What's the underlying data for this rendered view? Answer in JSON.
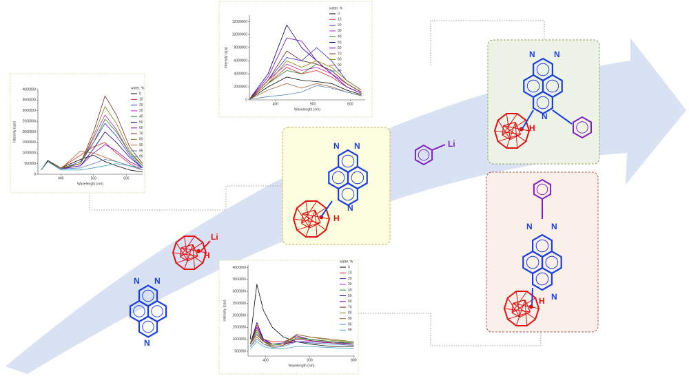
{
  "spectra": [
    {
      "type": "line",
      "ylabel": "Intensity (cps)",
      "xlabel": "Wavelength (nm)",
      "legend_title": "water, %",
      "x": [
        340,
        360,
        400,
        460,
        500,
        535,
        570,
        610,
        650
      ],
      "xlim": [
        330,
        650
      ],
      "xticks": [
        400,
        500,
        600
      ],
      "ylim": [
        0,
        4000000
      ],
      "yticks": [
        0,
        500000,
        1000000,
        1500000,
        2000000,
        2500000,
        3000000,
        3500000,
        4000000
      ],
      "series": [
        {
          "name": "0",
          "color": "#000000",
          "values": [
            200000,
            650000,
            300000,
            700000,
            900000,
            600000,
            400000,
            200000,
            100000
          ]
        },
        {
          "name": "10",
          "color": "#e02020",
          "values": [
            200000,
            600000,
            300000,
            900000,
            1300000,
            1500000,
            1000000,
            500000,
            200000
          ]
        },
        {
          "name": "20",
          "color": "#3030d0",
          "values": [
            200000,
            600000,
            250000,
            600000,
            1500000,
            2400000,
            1800000,
            900000,
            300000
          ]
        },
        {
          "name": "30",
          "color": "#c020c0",
          "values": [
            200000,
            600000,
            250000,
            500000,
            1700000,
            2800000,
            2100000,
            1000000,
            400000
          ]
        },
        {
          "name": "40",
          "color": "#208020",
          "values": [
            200000,
            600000,
            250000,
            500000,
            1500000,
            2600000,
            2000000,
            1000000,
            400000
          ]
        },
        {
          "name": "50",
          "color": "#000080",
          "values": [
            200000,
            600000,
            250000,
            400000,
            1200000,
            2000000,
            1500000,
            800000,
            300000
          ]
        },
        {
          "name": "60",
          "color": "#8000c0",
          "values": [
            200000,
            600000,
            250000,
            400000,
            1000000,
            1400000,
            1100000,
            600000,
            300000
          ]
        },
        {
          "name": "70",
          "color": "#802020",
          "values": [
            200000,
            600000,
            300000,
            500000,
            2000000,
            3700000,
            2800000,
            1300000,
            500000
          ]
        },
        {
          "name": "80",
          "color": "#808000",
          "values": [
            200000,
            600000,
            300000,
            500000,
            1800000,
            3200000,
            2400000,
            1100000,
            400000
          ]
        },
        {
          "name": "90",
          "color": "#a06030",
          "values": [
            200000,
            600000,
            250000,
            1100000,
            1000000,
            800000,
            600000,
            400000,
            200000
          ]
        },
        {
          "name": "95",
          "color": "#5080c0",
          "values": [
            200000,
            600000,
            250000,
            300000,
            500000,
            700000,
            600000,
            400000,
            200000
          ]
        },
        {
          "name": "99",
          "color": "#40a0c0",
          "values": [
            200000,
            600000,
            200000,
            200000,
            300000,
            400000,
            500000,
            400000,
            300000
          ]
        }
      ]
    },
    {
      "type": "line",
      "ylabel": "Intensity (cps)",
      "xlabel": "Wavelength (nm)",
      "legend_title": "water, %",
      "x": [
        330,
        380,
        430,
        470,
        510,
        550,
        590,
        630
      ],
      "xlim": [
        330,
        640
      ],
      "xticks": [
        400,
        500,
        600
      ],
      "ylim": [
        0,
        13000000
      ],
      "yticks": [
        0,
        2000000,
        4000000,
        6000000,
        8000000,
        10000000,
        12000000
      ],
      "series": [
        {
          "name": "0",
          "color": "#000000",
          "values": [
            100000,
            2000000,
            3500000,
            3000000,
            2800000,
            2500000,
            1500000,
            800000
          ]
        },
        {
          "name": "10",
          "color": "#e02020",
          "values": [
            100000,
            2500000,
            5000000,
            4000000,
            4500000,
            3500000,
            2000000,
            1000000
          ]
        },
        {
          "name": "20",
          "color": "#3030d0",
          "values": [
            100000,
            3000000,
            6500000,
            6000000,
            8000000,
            6000000,
            3000000,
            1500000
          ]
        },
        {
          "name": "30",
          "color": "#c020c0",
          "values": [
            100000,
            3000000,
            5500000,
            4500000,
            5000000,
            4000000,
            2500000,
            1200000
          ]
        },
        {
          "name": "40",
          "color": "#208020",
          "values": [
            100000,
            2500000,
            4500000,
            4000000,
            5500000,
            4500000,
            2500000,
            1200000
          ]
        },
        {
          "name": "50",
          "color": "#000080",
          "values": [
            100000,
            4000000,
            11500000,
            8000000,
            6000000,
            4000000,
            2000000,
            1000000
          ]
        },
        {
          "name": "60",
          "color": "#8000c0",
          "values": [
            100000,
            3500000,
            9500000,
            9000000,
            6000000,
            4000000,
            2000000,
            1000000
          ]
        },
        {
          "name": "70",
          "color": "#802020",
          "values": [
            100000,
            3000000,
            7500000,
            6000000,
            5500000,
            4500000,
            2500000,
            1200000
          ]
        },
        {
          "name": "80",
          "color": "#808000",
          "values": [
            100000,
            2500000,
            6000000,
            5000000,
            6000000,
            5000000,
            3000000,
            1500000
          ]
        },
        {
          "name": "90",
          "color": "#a06030",
          "values": [
            100000,
            1500000,
            2500000,
            1800000,
            2500000,
            2000000,
            1200000,
            600000
          ]
        },
        {
          "name": "99",
          "color": "#5080c0",
          "values": [
            100000,
            500000,
            800000,
            1200000,
            2200000,
            1800000,
            1200000,
            700000
          ]
        }
      ]
    },
    {
      "type": "line",
      "ylabel": "Intensity (cps)",
      "xlabel": "Wavelength (nm)",
      "legend_title": "water, %",
      "x": [
        330,
        360,
        390,
        430,
        480,
        540,
        600,
        700,
        800
      ],
      "xlim": [
        320,
        805
      ],
      "xticks": [
        400,
        600,
        800
      ],
      "ylim": [
        300000,
        4100000
      ],
      "yticks": [
        500000,
        1000000,
        1500000,
        2000000,
        2500000,
        3000000,
        3500000,
        4000000
      ],
      "series": [
        {
          "name": "0",
          "color": "#000000",
          "values": [
            1000000,
            3300000,
            2200000,
            1500000,
            1100000,
            900000,
            800000,
            700000,
            700000
          ]
        },
        {
          "name": "10",
          "color": "#e02020",
          "values": [
            800000,
            1600000,
            1000000,
            900000,
            900000,
            1100000,
            1000000,
            900000,
            800000
          ]
        },
        {
          "name": "20",
          "color": "#3030d0",
          "values": [
            800000,
            1500000,
            1000000,
            800000,
            850000,
            1150000,
            1000000,
            900000,
            800000
          ]
        },
        {
          "name": "30",
          "color": "#c020c0",
          "values": [
            800000,
            1400000,
            900000,
            800000,
            800000,
            1000000,
            950000,
            850000,
            800000
          ]
        },
        {
          "name": "40",
          "color": "#208020",
          "values": [
            800000,
            1300000,
            900000,
            750000,
            800000,
            1050000,
            1000000,
            900000,
            850000
          ]
        },
        {
          "name": "50",
          "color": "#000080",
          "values": [
            800000,
            1700000,
            1000000,
            800000,
            800000,
            900000,
            850000,
            800000,
            750000
          ]
        },
        {
          "name": "60",
          "color": "#8000c0",
          "values": [
            800000,
            1500000,
            950000,
            800000,
            800000,
            900000,
            900000,
            850000,
            800000
          ]
        },
        {
          "name": "70",
          "color": "#802020",
          "values": [
            800000,
            1200000,
            900000,
            700000,
            750000,
            1000000,
            950000,
            850000,
            800000
          ]
        },
        {
          "name": "80",
          "color": "#808000",
          "values": [
            800000,
            1400000,
            900000,
            800000,
            800000,
            1200000,
            1100000,
            950000,
            900000
          ]
        },
        {
          "name": "90",
          "color": "#a06030",
          "values": [
            700000,
            1100000,
            800000,
            700000,
            750000,
            1200000,
            1100000,
            1000000,
            900000
          ]
        },
        {
          "name": "95",
          "color": "#5080c0",
          "values": [
            700000,
            1000000,
            800000,
            650000,
            700000,
            900000,
            850000,
            800000,
            750000
          ]
        },
        {
          "name": "99",
          "color": "#40a0c0",
          "values": [
            600000,
            900000,
            700000,
            600000,
            600000,
            700000,
            700000,
            650000,
            600000
          ]
        }
      ]
    }
  ],
  "molecules": {
    "carboranyl_lithium": [
      "Li",
      "H"
    ],
    "phenyllithium": "Li",
    "start": [
      "N",
      "N",
      "N"
    ],
    "middle": [
      "N",
      "N",
      "N",
      "H"
    ],
    "top_product": [
      "N",
      "N",
      "N",
      "H"
    ],
    "bottom_product": [
      "N",
      "N",
      "N",
      "H"
    ]
  }
}
